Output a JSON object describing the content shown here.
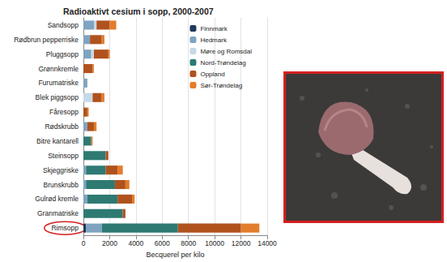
{
  "chart_data": {
    "type": "bar",
    "orientation": "horizontal",
    "stacked": true,
    "title": "Radioaktivt cesium i sopp, 2000-2007",
    "xlabel": "Becquerel per kilo",
    "categories": [
      "Sandsopp",
      "Rødbrun pepperriske",
      "Pluggsopp",
      "Grønnkremle",
      "Furumatriske",
      "Blek piggsopp",
      "Fåresopp",
      "Rødskrubb",
      "Bitre kantarell",
      "Steinsopp",
      "Skjeggriske",
      "Brunskrubb",
      "Gulrød kremle",
      "Granmatriske",
      "Rimsopp"
    ],
    "series": [
      {
        "name": "Finnmark",
        "color": "#1f3a5c",
        "values": [
          0,
          0,
          0,
          0,
          0,
          0,
          0,
          0,
          0,
          0,
          0,
          0,
          0,
          0,
          200
        ]
      },
      {
        "name": "Hedmark",
        "color": "#7fa3c0",
        "values": [
          800,
          500,
          600,
          0,
          300,
          0,
          0,
          300,
          0,
          0,
          200,
          200,
          300,
          0,
          1200
        ]
      },
      {
        "name": "Møre og Romsdal",
        "color": "#c6d9e6",
        "values": [
          200,
          0,
          200,
          0,
          0,
          700,
          0,
          0,
          0,
          0,
          0,
          0,
          0,
          0,
          0
        ]
      },
      {
        "name": "Nord-Trøndelag",
        "color": "#2e7a72",
        "values": [
          0,
          0,
          0,
          0,
          0,
          0,
          0,
          0,
          600,
          1700,
          1500,
          2200,
          2300,
          3000,
          5800
        ]
      },
      {
        "name": "Oppland",
        "color": "#b0521e",
        "values": [
          1000,
          900,
          1100,
          700,
          0,
          700,
          300,
          500,
          0,
          200,
          900,
          800,
          1100,
          200,
          4800
        ]
      },
      {
        "name": "Sør-Trøndelag",
        "color": "#e27d2c",
        "values": [
          500,
          200,
          100,
          100,
          0,
          200,
          100,
          200,
          100,
          0,
          400,
          300,
          200,
          0,
          1400
        ]
      }
    ],
    "xlim": [
      0,
      14000
    ],
    "xticks": [
      0,
      2000,
      4000,
      6000,
      8000,
      10000,
      12000,
      14000
    ],
    "grid": true,
    "legend": "top-right"
  }
}
